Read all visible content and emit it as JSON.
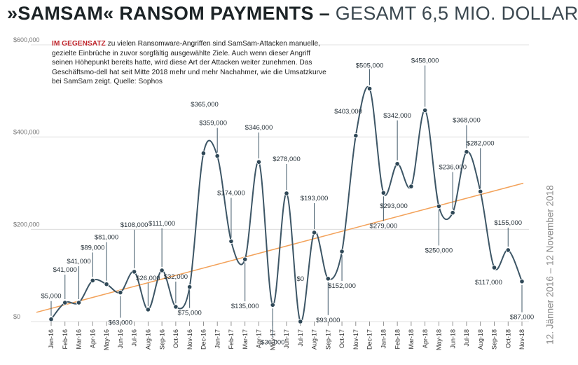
{
  "header": {
    "title_strong": "»SAMSAM« RANSOM PAYMENTS –",
    "title_light": "GESAMT 6,5 MIO. DOLLAR"
  },
  "description": {
    "lead": "IM GEGENSATZ",
    "text": "zu vielen Ransomware-Angriffen sind SamSam-Attacken manuelle, gezielte Einbrüche in zuvor sorgfältig ausgewählte Ziele. Auch wenn dieser Angriff seinen Höhepunkt bereits hatte, wird diese Art der Attacken weiter zunehmen. Das Geschäftsmo-dell hat seit Mitte 2018 mehr und mehr Nachahmer, wie die Umsatzkurve bei SamSam zeigt. Quelle: Sophos"
  },
  "side_note": "12. Jänner 2016 – 12 November 2018",
  "colors": {
    "line": "#3d5666",
    "marker": "#2f4857",
    "trend": "#f3a25a",
    "grid": "#d6d6d6",
    "lead": "#c0262d"
  },
  "chart_data": {
    "type": "line",
    "categories": [
      "Jan-16",
      "Feb-16",
      "Mar-16",
      "Apr-16",
      "May-16",
      "Jun-16",
      "Jul-16",
      "Aug-16",
      "Sep-16",
      "Oct-16",
      "Nov-16",
      "Dec-16",
      "Jan-17",
      "Feb-17",
      "Mar-17",
      "Apr-17",
      "May-17",
      "Jun-17",
      "Jul-17",
      "Aug-17",
      "Sep-17",
      "Oct-17",
      "Nov-17",
      "Dec-17",
      "Jan-18",
      "Feb-18",
      "Mar-18",
      "Apr-18",
      "May-18",
      "Jun-18",
      "Jul-18",
      "Aug-18",
      "Sep-18",
      "Oct-18",
      "Nov-18"
    ],
    "series": [
      {
        "values": [
          5000,
          41000,
          41000,
          89000,
          81000,
          63000,
          108000,
          26000,
          111000,
          32000,
          75000,
          365000,
          359000,
          174000,
          135000,
          346000,
          36000,
          278000,
          0,
          193000,
          93000,
          152000,
          403000,
          505000,
          279000,
          342000,
          293000,
          458000,
          250000,
          236000,
          368000,
          282000,
          117000,
          155000,
          87000
        ],
        "labels": [
          "$5,000",
          "$41,000",
          "$41,000",
          "$89,000",
          "$81,000",
          "$63,000",
          "$108,000",
          "$26,000",
          "$111,000",
          "$32,000",
          "$75,000",
          "$365,000",
          "$359,000",
          "$174,000",
          "$135,000",
          "$346,000",
          "$36,000",
          "$278,000",
          "$0",
          "$193,000",
          "$93,000",
          "$152,000",
          "$403,000",
          "$505,000",
          "$279,000",
          "$342,000",
          "$293,000",
          "$458,000",
          "$250,000",
          "$236,000",
          "$368,000",
          "$282,000",
          "$117,000",
          "$155,000",
          "$87,000"
        ]
      }
    ],
    "trendline": {
      "start": 20000,
      "end": 300000
    },
    "y_ticks": [
      {
        "value": 0,
        "label": "$0"
      },
      {
        "value": 200000,
        "label": "$200,000"
      },
      {
        "value": 400000,
        "label": "$400,000"
      },
      {
        "value": 600000,
        "label": "$600,000"
      }
    ],
    "ylim": [
      0,
      600000
    ],
    "grid": true,
    "legend": "none"
  }
}
